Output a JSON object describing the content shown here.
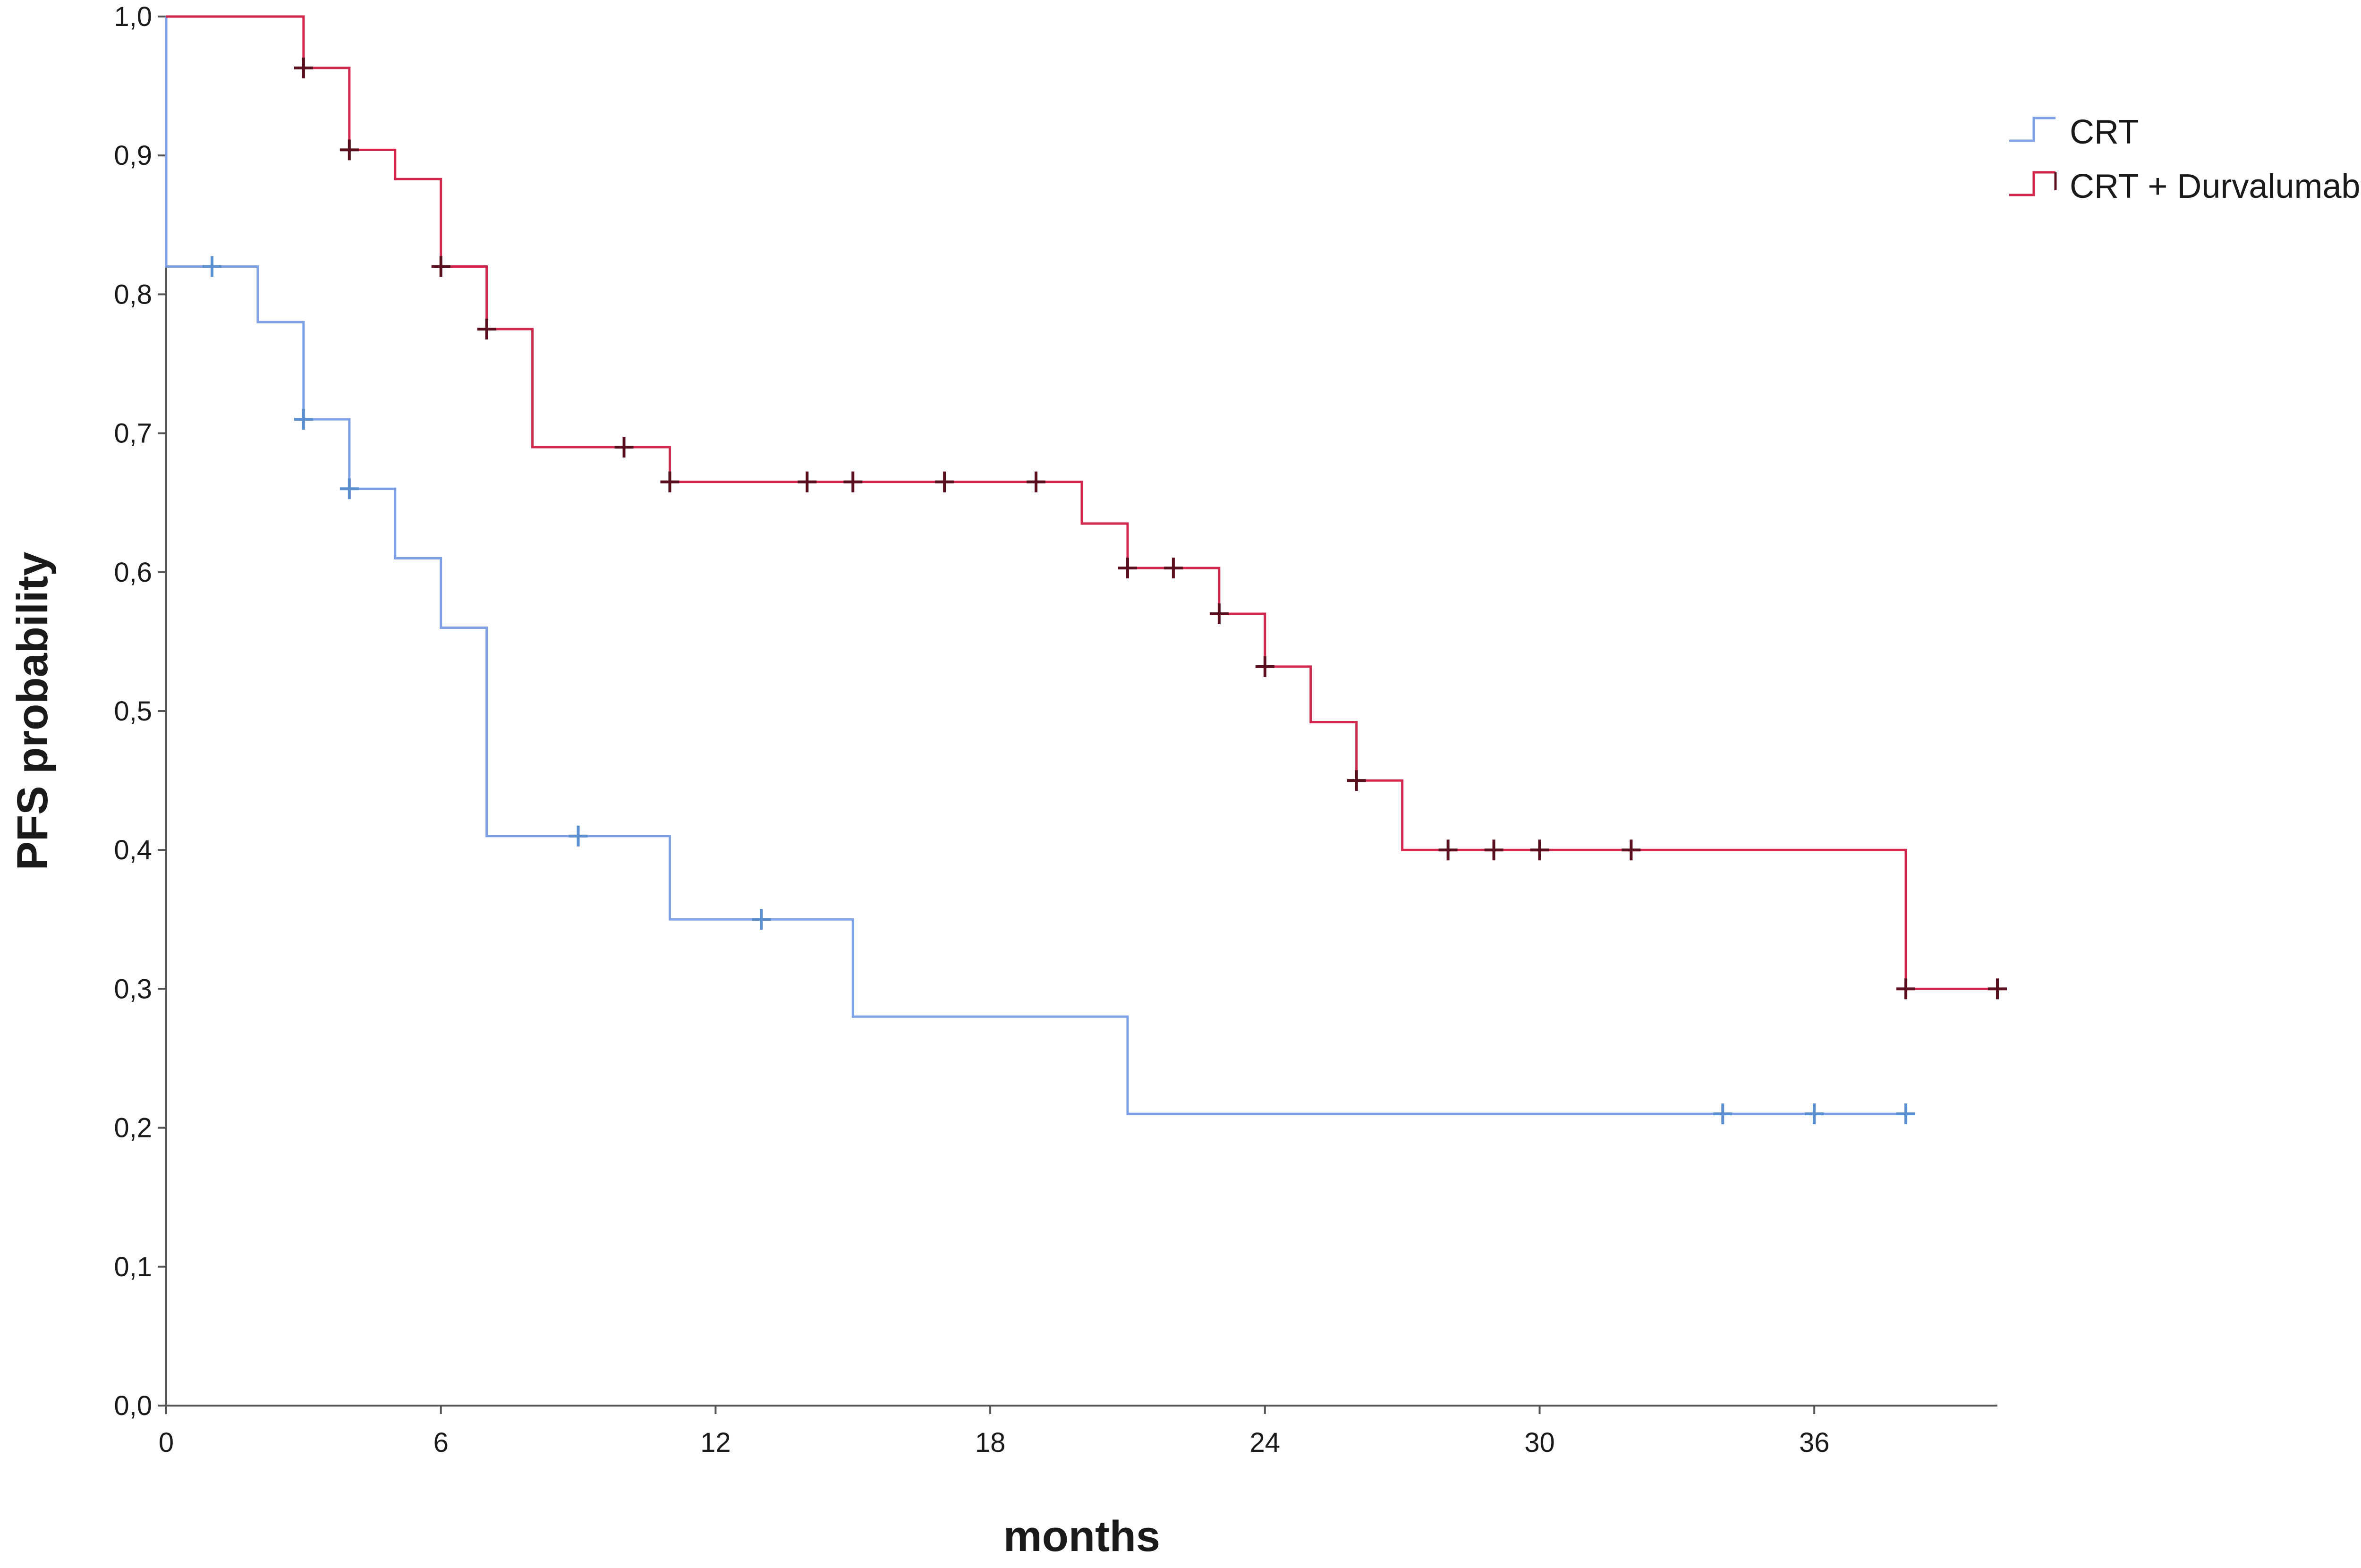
{
  "chart_data": {
    "type": "line",
    "xlabel": "months",
    "ylabel": "PFS probability",
    "xlim": [
      0,
      40
    ],
    "ylim": [
      0,
      1
    ],
    "x_ticks": [
      "0",
      "6",
      "12",
      "18",
      "24",
      "30",
      "36"
    ],
    "x_tick_values": [
      0,
      6,
      12,
      18,
      24,
      30,
      36
    ],
    "y_ticks": [
      "0,0",
      "0,1",
      "0,2",
      "0,3",
      "0,4",
      "0,5",
      "0,6",
      "0,7",
      "0,8",
      "0,9",
      "1,0"
    ],
    "y_tick_values": [
      0,
      0.1,
      0.2,
      0.3,
      0.4,
      0.5,
      0.6,
      0.7,
      0.8,
      0.9,
      1.0
    ],
    "grid": false,
    "legend": "top-right",
    "series": [
      {
        "name": "CRT",
        "color": "#7ea1e6",
        "censor_color": "#5b8fd0",
        "steps": [
          [
            0,
            1.0
          ],
          [
            0,
            0.82
          ],
          [
            2,
            0.78
          ],
          [
            3,
            0.71
          ],
          [
            4,
            0.66
          ],
          [
            5,
            0.61
          ],
          [
            6,
            0.56
          ],
          [
            7,
            0.41
          ],
          [
            11,
            0.35
          ],
          [
            15,
            0.28
          ],
          [
            21,
            0.21
          ],
          [
            38,
            0.21
          ]
        ],
        "censors": [
          [
            1,
            0.82
          ],
          [
            3,
            0.71
          ],
          [
            4,
            0.66
          ],
          [
            9,
            0.41
          ],
          [
            13,
            0.35
          ],
          [
            34,
            0.21
          ],
          [
            36,
            0.21
          ],
          [
            38,
            0.21
          ]
        ]
      },
      {
        "name": "CRT + Durvalumab",
        "color": "#d0294d",
        "censor_color": "#5a0f1e",
        "steps": [
          [
            0,
            1.0
          ],
          [
            3,
            0.963
          ],
          [
            4,
            0.904
          ],
          [
            5,
            0.883
          ],
          [
            6,
            0.82
          ],
          [
            7,
            0.775
          ],
          [
            8,
            0.69
          ],
          [
            11,
            0.665
          ],
          [
            20,
            0.635
          ],
          [
            21,
            0.603
          ],
          [
            23,
            0.57
          ],
          [
            24,
            0.532
          ],
          [
            25,
            0.492
          ],
          [
            26,
            0.45
          ],
          [
            27,
            0.4
          ],
          [
            38,
            0.3
          ],
          [
            40,
            0.3
          ]
        ],
        "censors": [
          [
            3,
            0.963
          ],
          [
            4,
            0.904
          ],
          [
            6,
            0.82
          ],
          [
            7,
            0.775
          ],
          [
            10,
            0.69
          ],
          [
            11,
            0.665
          ],
          [
            14,
            0.665
          ],
          [
            15,
            0.665
          ],
          [
            17,
            0.665
          ],
          [
            19,
            0.665
          ],
          [
            21,
            0.603
          ],
          [
            22,
            0.603
          ],
          [
            23,
            0.57
          ],
          [
            24,
            0.532
          ],
          [
            26,
            0.45
          ],
          [
            28,
            0.4
          ],
          [
            29,
            0.4
          ],
          [
            30,
            0.4
          ],
          [
            32,
            0.4
          ],
          [
            38,
            0.3
          ],
          [
            40,
            0.3
          ]
        ]
      }
    ]
  }
}
